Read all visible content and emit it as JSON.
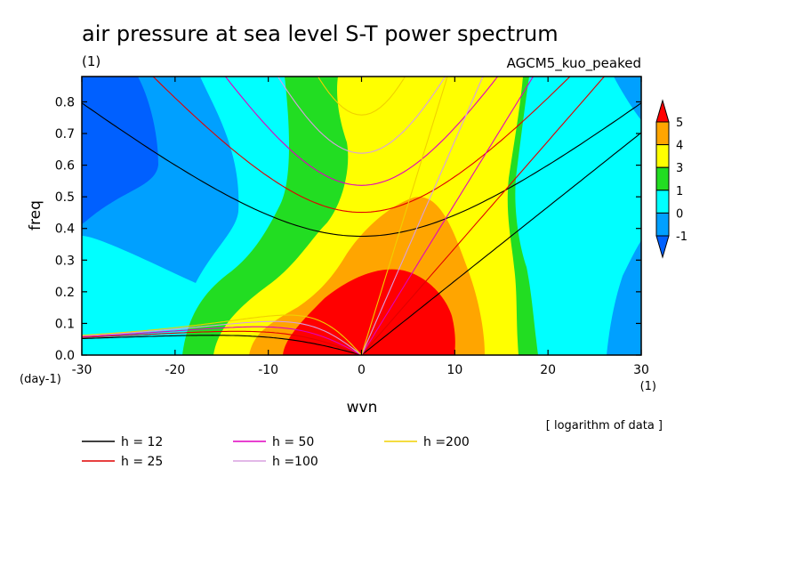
{
  "chart_data": {
    "type": "heatmap",
    "title": "air pressure at sea level S-T power spectrum",
    "subtitle_left": "(1)",
    "subtitle_right": "AGCM5_kuo_peaked",
    "xlabel": "wvn",
    "ylabel": "freq",
    "x_unit": "(1)",
    "y_unit": "(day-1)",
    "note": "[ logarithm of data ]",
    "xlim": [
      -30,
      30
    ],
    "ylim": [
      0,
      0.88
    ],
    "xticks": [
      -30,
      -20,
      -10,
      0,
      10,
      20,
      30
    ],
    "xtick_labels": [
      "-30",
      "-20",
      "-10",
      "0",
      "10",
      "20",
      "30"
    ],
    "yticks": [
      0.0,
      0.1,
      0.2,
      0.3,
      0.4,
      0.5,
      0.6,
      0.7,
      0.8
    ],
    "ytick_labels": [
      "0.0",
      "0.1",
      "0.2",
      "0.3",
      "0.4",
      "0.5",
      "0.6",
      "0.7",
      "0.8"
    ],
    "colorbar": {
      "levels": [
        -1,
        0,
        1,
        3,
        4,
        5
      ],
      "labels": [
        "-1",
        "0",
        "1",
        "3",
        "4",
        "5"
      ],
      "colors": [
        "#0060ff",
        "#00a0ff",
        "#00ffff",
        "#22dd22",
        "#ffff00",
        "#ffa500",
        "#ff0000"
      ]
    },
    "dispersion_curves": [
      {
        "label": "h = 12",
        "h": 12,
        "color": "#000000"
      },
      {
        "label": "h = 25",
        "h": 25,
        "color": "#e00000"
      },
      {
        "label": "h = 50",
        "h": 50,
        "color": "#e000c0"
      },
      {
        "label": "h =100",
        "h": 100,
        "color": "#d8a0e0"
      },
      {
        "label": "h =200",
        "h": 200,
        "color": "#f0d000"
      }
    ]
  }
}
